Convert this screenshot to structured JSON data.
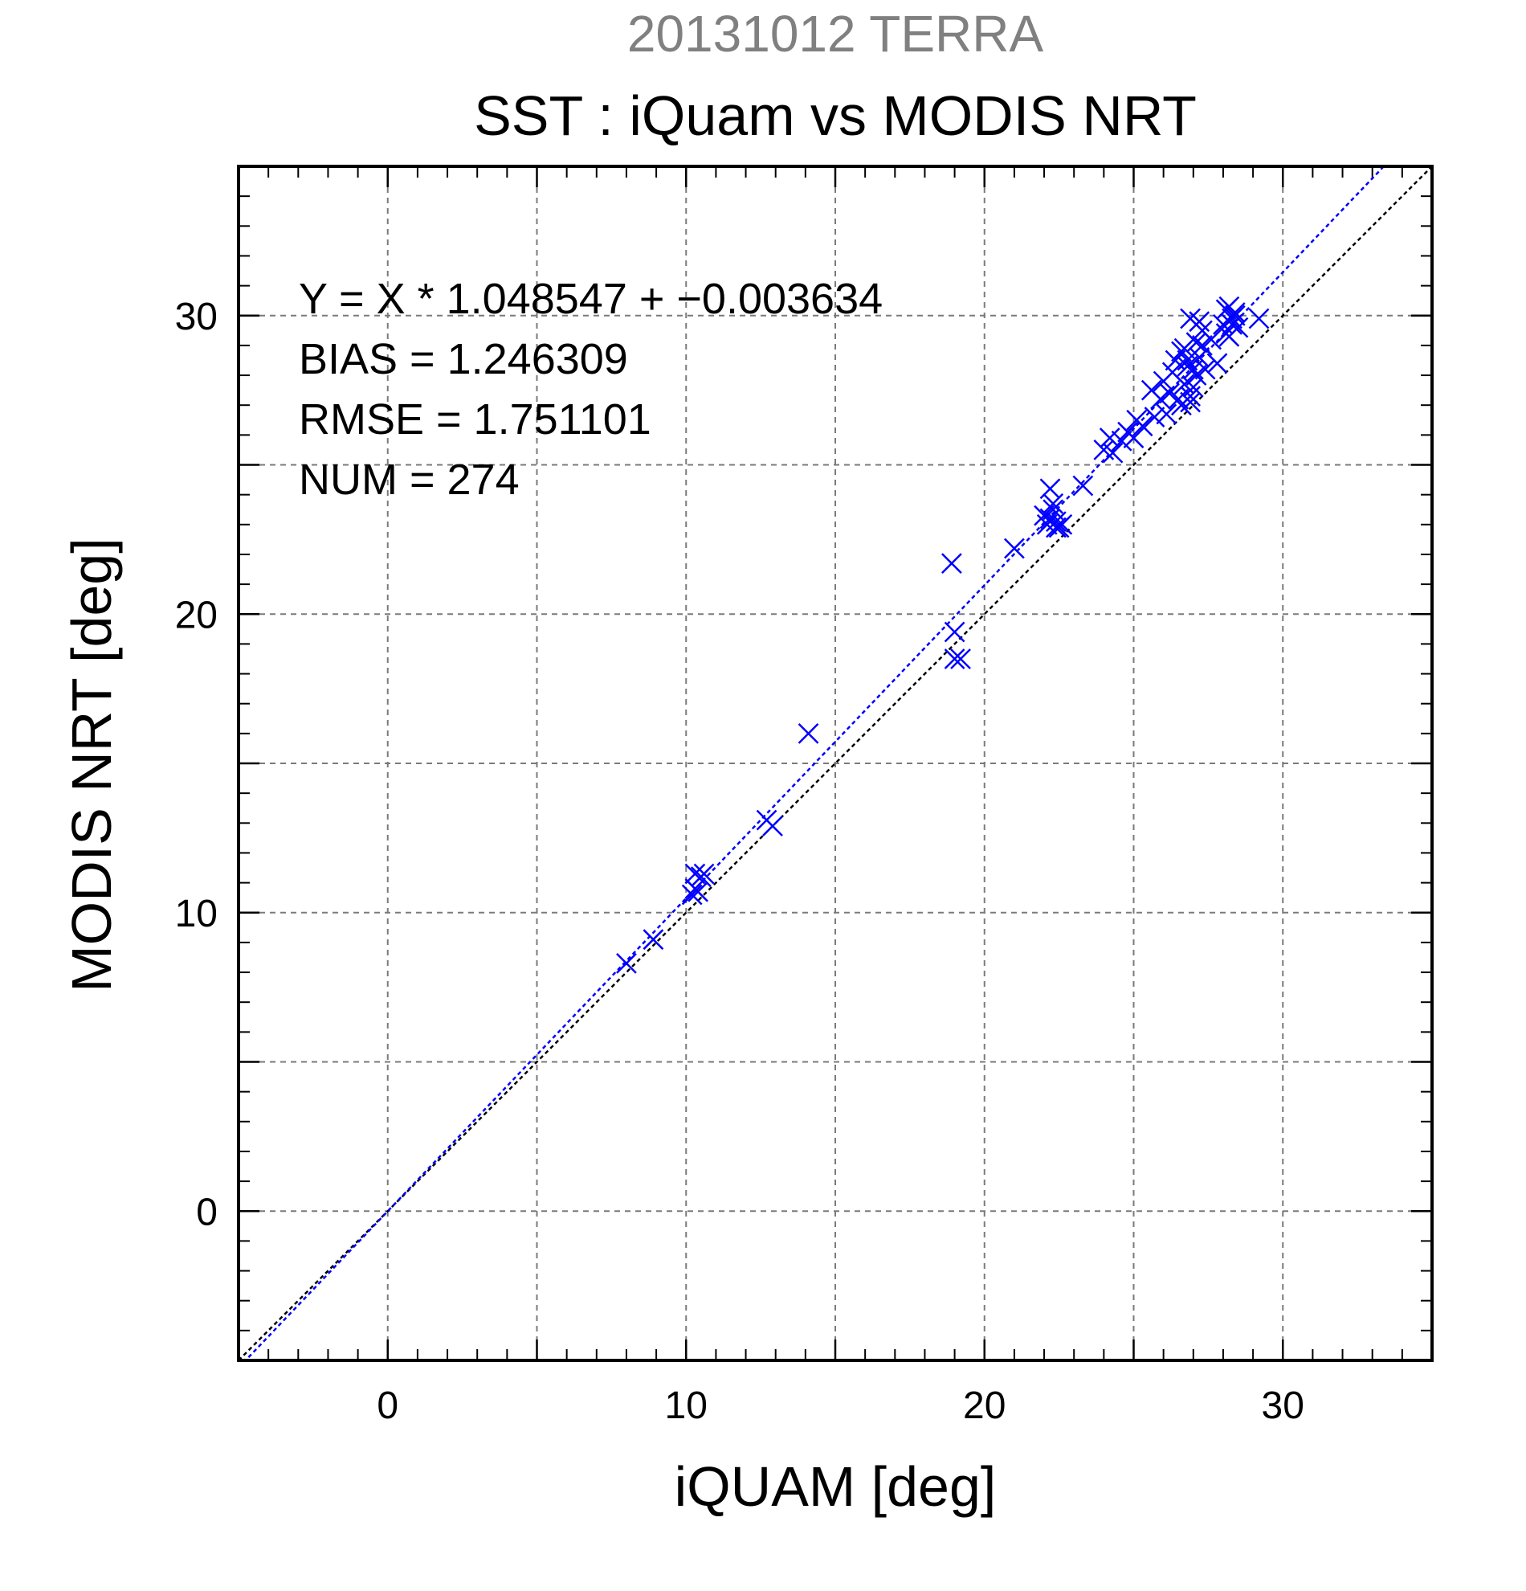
{
  "chart_data": {
    "type": "scatter",
    "title": "20131012 TERRA",
    "subtitle": "SST : iQuam vs MODIS NRT",
    "xlabel": "iQUAM [deg]",
    "ylabel": "MODIS NRT [deg]",
    "xlim": [
      -5,
      35
    ],
    "ylim": [
      -5,
      35
    ],
    "xticks": [
      0,
      10,
      20,
      30
    ],
    "yticks": [
      0,
      10,
      20,
      30
    ],
    "grid": true,
    "marker_color": "#0000ff",
    "fit_line_color": "#0000ff",
    "identity_line_color": "#000000",
    "stats": [
      "Y = X * 1.048547 + −0.003634",
      "BIAS = 1.246309",
      "RMSE = 1.751101",
      "NUM = 274"
    ],
    "fit": {
      "slope": 1.048547,
      "intercept": -0.003634
    },
    "series": [
      {
        "marker": "x",
        "x": [
          8.0,
          8.9,
          10.2,
          10.3,
          10.4,
          10.5,
          10.6,
          10.3,
          12.7,
          12.9,
          14.1,
          18.9,
          19.0,
          19.0,
          19.2,
          21.0,
          22.0,
          22.1,
          22.2,
          22.3,
          22.4,
          22.5,
          22.2,
          22.3,
          22.4,
          22.6,
          23.3,
          24.0,
          24.2,
          24.3,
          24.6,
          24.8,
          25.0,
          25.1,
          25.3,
          25.6,
          25.7,
          25.9,
          26.0,
          26.1,
          26.2,
          26.3,
          26.4,
          26.5,
          26.6,
          26.7,
          26.8,
          26.9,
          27.0,
          27.1,
          27.2,
          27.3,
          27.4,
          26.6,
          26.8,
          27.0,
          27.2,
          26.7,
          26.9,
          27.1,
          27.6,
          27.8,
          28.0,
          28.1,
          28.2,
          28.3,
          28.4,
          28.5,
          28.1,
          28.2,
          28.3,
          28.4,
          29.2,
          26.9,
          27.3
        ],
        "y": [
          8.3,
          9.1,
          10.6,
          11.3,
          10.7,
          11.2,
          11.3,
          10.8,
          13.1,
          12.9,
          16.0,
          21.7,
          19.4,
          18.5,
          18.5,
          22.2,
          23.3,
          23.0,
          24.2,
          23.5,
          23.1,
          22.9,
          23.2,
          23.7,
          22.9,
          23.0,
          24.3,
          25.5,
          25.9,
          25.4,
          25.8,
          26.1,
          25.9,
          26.5,
          26.3,
          27.5,
          26.6,
          27.2,
          27.8,
          26.7,
          27.4,
          28.1,
          28.5,
          27.2,
          28.8,
          27.7,
          28.5,
          29.9,
          28.2,
          29.1,
          28.6,
          29.5,
          28.2,
          27.0,
          28.3,
          27.6,
          29.8,
          28.9,
          27.3,
          28.0,
          29.2,
          28.4,
          29.7,
          30.2,
          29.3,
          29.9,
          30.1,
          29.6,
          29.4,
          30.3,
          29.7,
          30.0,
          29.9,
          27.1,
          29.0
        ]
      }
    ]
  }
}
